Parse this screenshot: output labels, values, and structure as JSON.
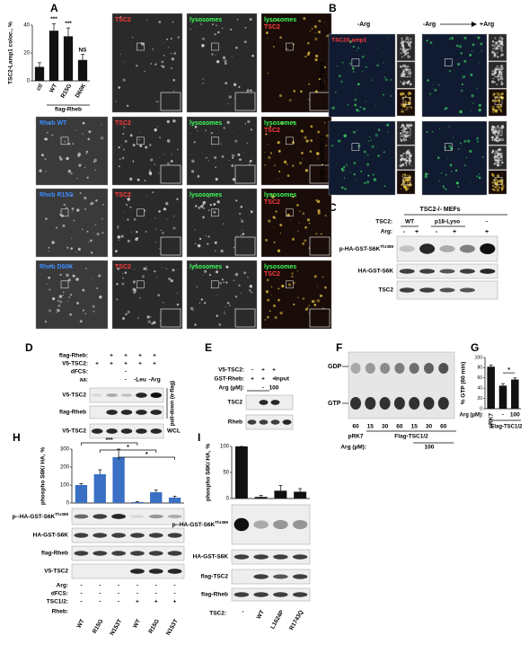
{
  "panel_letters": [
    "A",
    "B",
    "C",
    "D",
    "E",
    "F",
    "G",
    "H",
    "I"
  ],
  "panel_a": {
    "channel_tsc2": "TSC2",
    "channel_lysosomes": "lysosomes",
    "row_labels": [
      "Rheb WT",
      "Rheb R15G",
      "Rheb D60K"
    ],
    "group_label": "flag-Rheb"
  },
  "panel_b": {
    "condition_left": "-Arg",
    "condition_from": "-Arg",
    "condition_to": "+Arg",
    "stain": "TSC2/Lamp1",
    "row_labels": [
      "WT TSC2",
      "p18-Lyso-TSC2"
    ]
  },
  "panel_c": {
    "header": "TSC2-/- MEFs",
    "tsc2_row": "TSC2:",
    "tsc2_groups": [
      "WT",
      "p18-Lyso",
      "-"
    ],
    "arg_row": "Arg:",
    "arg_signs": [
      "-",
      "+",
      "-",
      "+",
      "+"
    ],
    "blot_rows": [
      "p-HA-GST-S6K",
      "HA-GST-S6K",
      "TSC2"
    ],
    "phospho_site": "Thr389"
  },
  "panel_d": {
    "conditions": [
      {
        "label": "flag-Rheb:",
        "signs": [
          "+",
          "+",
          "+",
          "+"
        ]
      },
      {
        "label": "V5-TSC2:",
        "signs": [
          "+",
          "+",
          "+",
          "+",
          "+"
        ]
      },
      {
        "label": "dFCS:",
        "signs": [
          "-"
        ]
      },
      {
        "label": "aa:",
        "signs": [
          "-",
          "-Leu",
          "-Arg"
        ]
      }
    ],
    "blot_rows": [
      "V5-TSC2",
      "flag-Rheb",
      "V5-TSC2"
    ],
    "pulldown": "pull-down (α-flag)",
    "wcl": "WCL"
  },
  "panel_e": {
    "conditions": [
      {
        "label": "V5-TSC2:",
        "signs": [
          "-",
          "+",
          "+"
        ]
      },
      {
        "label": "GST-Rheb:",
        "signs": [
          "+",
          "+",
          "+"
        ]
      },
      {
        "label": "Arg (µM):",
        "signs": [
          "-",
          "100"
        ]
      }
    ],
    "input": "Input",
    "blot_rows": [
      "TSC2",
      "Rheb"
    ]
  },
  "panel_f": {
    "gdp": "GDP",
    "gtp": "GTP",
    "time_labels": [
      "60",
      "15",
      "30",
      "60",
      "15",
      "30",
      "60"
    ],
    "control": "pRK7",
    "treatment": "Flag-TSC1/2",
    "arg_label": "Arg (µM):",
    "arg_value": "100"
  },
  "panel_g": {
    "group": "Flag-TSC1/2",
    "arg_label": "Arg (µM):"
  },
  "panel_h": {
    "conditions": [
      {
        "label": "Arg:",
        "signs": [
          "-",
          "-",
          "-",
          "-",
          "-",
          "-"
        ]
      },
      {
        "label": "dFCS:",
        "signs": [
          "-",
          "-",
          "-",
          "-",
          "-",
          "-"
        ]
      },
      {
        "label": "TSC1/2:",
        "signs": [
          "-",
          "-",
          "-",
          "+",
          "+",
          "+"
        ]
      }
    ],
    "rheb_label": "Rheb:",
    "blot_rows": [
      "p--HA-GST-S6K",
      "HA-GST-S6K",
      "flag-Rheb",
      "V5-TSC2"
    ],
    "phospho_site": "Thr389"
  },
  "panel_i": {
    "tsc2_label": "TSC2:",
    "blot_rows": [
      "p--HA-GST-S6K",
      "HA-GST-S6K",
      "flag-TSC2",
      "flag-Rheb"
    ],
    "phospho_site": "Thr389"
  },
  "chart_data": [
    {
      "type": "bar",
      "ylabel": "TSC2-Lamp1 coloc., %",
      "categories": [
        "ctl",
        "WT",
        "R15G",
        "D60K"
      ],
      "values": [
        10,
        36,
        32,
        15
      ],
      "errors": [
        3,
        5,
        6,
        4
      ],
      "color": "#111111",
      "ylim": [
        0,
        40
      ],
      "yticks": [
        0,
        20,
        40
      ],
      "annotations": [
        "***",
        "***",
        "NS"
      ]
    },
    {
      "type": "bar",
      "ylabel": "% GTP (60 min)",
      "categories": [
        "pRK7",
        "-",
        "100"
      ],
      "values": [
        82,
        45,
        57
      ],
      "errors": [
        3,
        4,
        3
      ],
      "color": "#111111",
      "ylim": [
        0,
        100
      ],
      "yticks": [
        0,
        20,
        40,
        60,
        80,
        100
      ],
      "annotations": [
        "*"
      ]
    },
    {
      "type": "bar",
      "ylabel": "phospho S6K/ HA, %",
      "categories": [
        "WT",
        "R15G",
        "N153T",
        "WT",
        "R15G",
        "N153T"
      ],
      "values": [
        100,
        160,
        255,
        5,
        60,
        30
      ],
      "errors": [
        8,
        25,
        45,
        3,
        12,
        8
      ],
      "color": "#3a6fc4",
      "ylim": [
        0,
        300
      ],
      "yticks": [
        0,
        100,
        200,
        300
      ],
      "annotations": [
        "***",
        "*",
        "*"
      ]
    },
    {
      "type": "bar",
      "ylabel": "phospho S6K/ HA, %",
      "categories": [
        "-",
        "WT",
        "L1624P",
        "R1743Q"
      ],
      "values": [
        100,
        3,
        15,
        13
      ],
      "errors": [
        0,
        3,
        10,
        6
      ],
      "color": "#111111",
      "ylim": [
        0,
        100
      ],
      "yticks": [
        0,
        50,
        100
      ]
    }
  ]
}
